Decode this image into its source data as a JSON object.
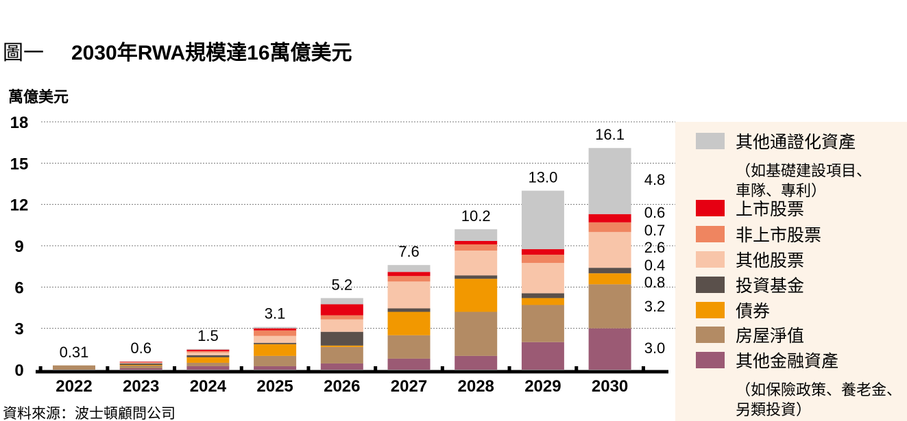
{
  "title": {
    "figure_label": "圖一",
    "text": "2030年RWA規模達16萬億美元"
  },
  "source": "資料來源：波士頓顧問公司",
  "chart_data": {
    "type": "bar",
    "stacked": true,
    "ylabel": "萬億美元",
    "ylim": [
      0,
      18
    ],
    "yticks": [
      0,
      3,
      6,
      9,
      12,
      15,
      18
    ],
    "grid": true,
    "legend_position": "right",
    "categories": [
      "2022",
      "2023",
      "2024",
      "2025",
      "2026",
      "2027",
      "2028",
      "2029",
      "2030"
    ],
    "totals": [
      "0.31",
      "0.6",
      "1.5",
      "3.1",
      "5.2",
      "7.6",
      "10.2",
      "13.0",
      "16.1"
    ],
    "series": [
      {
        "name": "其他金融資產",
        "note": [
          "（如保險政策、養老金、",
          "另類投資）"
        ],
        "color": "#9b5a74",
        "values": [
          0,
          0.1,
          0.25,
          0.25,
          0.45,
          0.8,
          1.0,
          2.0,
          3.0
        ]
      },
      {
        "name": "房屋淨值",
        "color": "#b38b64",
        "values": [
          0.31,
          0.2,
          0.25,
          0.75,
          1.2,
          1.7,
          3.2,
          2.7,
          3.2
        ]
      },
      {
        "name": "債券",
        "color": "#f29800",
        "values": [
          0,
          0.05,
          0.4,
          0.85,
          0.1,
          1.7,
          2.4,
          0.5,
          0.8
        ]
      },
      {
        "name": "投資基金",
        "color": "#5a504b",
        "values": [
          0,
          0.1,
          0.15,
          0.1,
          1.0,
          0.25,
          0.25,
          0.35,
          0.4
        ]
      },
      {
        "name": "其他股票",
        "color": "#f8c5a9",
        "values": [
          0,
          0.05,
          0.2,
          0.5,
          0.9,
          1.95,
          1.8,
          2.2,
          2.6
        ]
      },
      {
        "name": "非上市股票",
        "color": "#ef8560",
        "values": [
          0,
          0.03,
          0.1,
          0.4,
          0.3,
          0.4,
          0.45,
          0.6,
          0.7
        ]
      },
      {
        "name": "上市股票",
        "color": "#e60012",
        "values": [
          0,
          0.05,
          0.1,
          0.15,
          0.8,
          0.3,
          0.25,
          0.4,
          0.6
        ]
      },
      {
        "name": "其他通證化資產",
        "note": [
          "（如基礎建設項目、",
          "車隊、專利）"
        ],
        "color": "#c8c8c8",
        "values": [
          0,
          0.02,
          0.05,
          0.1,
          0.45,
          0.5,
          0.85,
          4.25,
          4.8
        ]
      }
    ],
    "data_labels_2030": [
      "3.0",
      "3.2",
      "0.8",
      "0.4",
      "2.6",
      "0.7",
      "0.6",
      "4.8"
    ]
  }
}
